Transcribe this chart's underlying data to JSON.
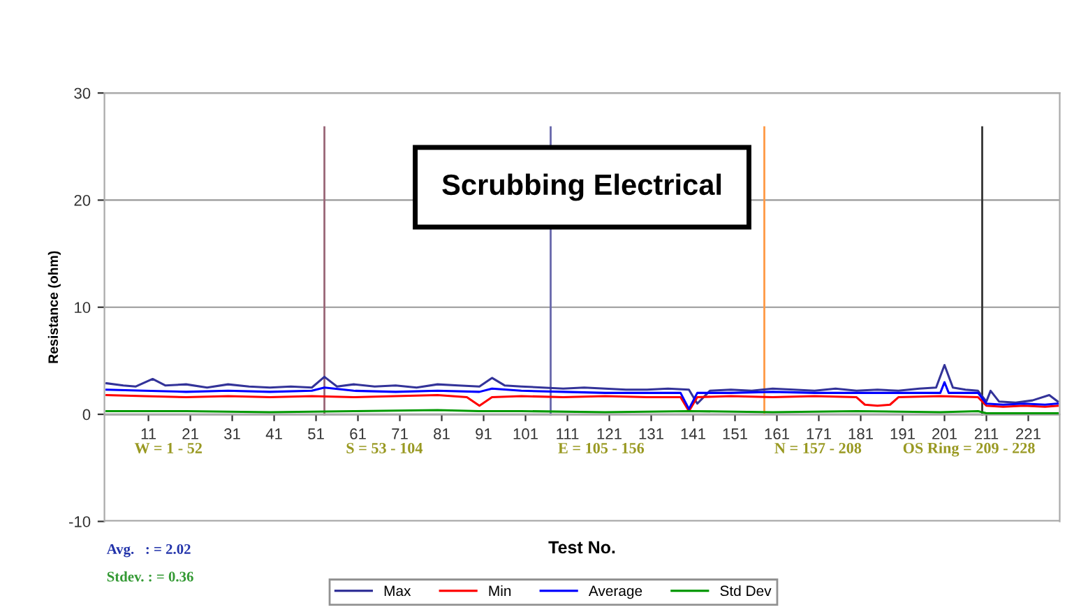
{
  "chart_data": {
    "type": "line",
    "title": "Scrubbing Electrical",
    "xlabel": "Test No.",
    "ylabel": "Resistance (ohm)",
    "xlim": [
      0.5,
      228.5
    ],
    "xticks": [
      11,
      21,
      31,
      41,
      51,
      61,
      71,
      81,
      91,
      101,
      111,
      121,
      131,
      141,
      151,
      161,
      171,
      181,
      191,
      201,
      211,
      221
    ],
    "ylim": [
      -10,
      30
    ],
    "yticks": [
      -10,
      0,
      10,
      20,
      30
    ],
    "grid": "y",
    "legend": "bottom",
    "line_style": "solid",
    "series": [
      {
        "name": "Max",
        "color": "#333399",
        "x": [
          1,
          5,
          8,
          12,
          15,
          20,
          25,
          30,
          35,
          40,
          45,
          50,
          53,
          56,
          60,
          65,
          70,
          75,
          80,
          85,
          90,
          93,
          96,
          100,
          105,
          110,
          115,
          120,
          125,
          130,
          135,
          140,
          142,
          145,
          150,
          155,
          160,
          165,
          170,
          175,
          180,
          185,
          190,
          195,
          199,
          201,
          203,
          206,
          209,
          211,
          212,
          214,
          218,
          222,
          226,
          228
        ],
        "values": [
          2.9,
          2.7,
          2.6,
          3.3,
          2.7,
          2.8,
          2.5,
          2.8,
          2.6,
          2.5,
          2.6,
          2.5,
          3.5,
          2.6,
          2.8,
          2.6,
          2.7,
          2.5,
          2.8,
          2.7,
          2.6,
          3.4,
          2.7,
          2.6,
          2.5,
          2.4,
          2.5,
          2.4,
          2.3,
          2.3,
          2.4,
          2.3,
          1.0,
          2.2,
          2.3,
          2.2,
          2.4,
          2.3,
          2.2,
          2.4,
          2.2,
          2.3,
          2.2,
          2.4,
          2.5,
          4.6,
          2.5,
          2.3,
          2.2,
          1.2,
          2.2,
          1.2,
          1.1,
          1.3,
          1.8,
          1.2
        ]
      },
      {
        "name": "Min",
        "color": "#ff0000",
        "x": [
          1,
          10,
          20,
          30,
          40,
          50,
          60,
          70,
          80,
          87,
          90,
          93,
          100,
          110,
          120,
          130,
          138,
          140,
          142,
          150,
          160,
          170,
          180,
          182,
          185,
          188,
          190,
          200,
          209,
          211,
          215,
          220,
          225,
          228
        ],
        "values": [
          1.8,
          1.7,
          1.6,
          1.7,
          1.6,
          1.7,
          1.6,
          1.7,
          1.8,
          1.6,
          0.8,
          1.6,
          1.7,
          1.6,
          1.7,
          1.6,
          1.6,
          0.3,
          1.6,
          1.7,
          1.6,
          1.7,
          1.6,
          0.9,
          0.8,
          0.9,
          1.6,
          1.7,
          1.6,
          0.8,
          0.7,
          0.8,
          0.7,
          0.8
        ]
      },
      {
        "name": "Average",
        "color": "#0000ff",
        "x": [
          1,
          10,
          20,
          30,
          40,
          50,
          53,
          60,
          70,
          80,
          90,
          93,
          100,
          110,
          120,
          130,
          138,
          140,
          142,
          150,
          160,
          170,
          180,
          190,
          200,
          201,
          202,
          209,
          211,
          215,
          220,
          225,
          228
        ],
        "values": [
          2.3,
          2.2,
          2.1,
          2.2,
          2.1,
          2.2,
          2.5,
          2.2,
          2.1,
          2.2,
          2.1,
          2.4,
          2.2,
          2.1,
          2.0,
          2.0,
          2.0,
          0.5,
          2.0,
          2.0,
          2.1,
          2.0,
          2.0,
          2.0,
          2.0,
          3.0,
          2.0,
          2.0,
          1.0,
          0.9,
          1.0,
          0.9,
          1.0
        ]
      },
      {
        "name": "Std Dev",
        "color": "#009900",
        "x": [
          1,
          20,
          40,
          60,
          80,
          90,
          100,
          120,
          140,
          160,
          180,
          200,
          209,
          211,
          228
        ],
        "values": [
          0.3,
          0.3,
          0.2,
          0.3,
          0.4,
          0.3,
          0.3,
          0.2,
          0.3,
          0.2,
          0.3,
          0.2,
          0.3,
          0.1,
          0.1
        ]
      }
    ],
    "ref_lines": [
      {
        "axis": "x",
        "value": 53,
        "label": null,
        "color": "#996677"
      },
      {
        "axis": "x",
        "value": 107,
        "label": null,
        "color": "#6666aa"
      },
      {
        "axis": "x",
        "value": 158,
        "label": null,
        "color": "#ff9944"
      },
      {
        "axis": "x",
        "value": 210,
        "label": null,
        "color": "#333333"
      }
    ],
    "annotations": [
      "W = 1 - 52",
      "S = 53 - 104",
      "E = 105 - 156",
      "N = 157 - 208",
      "OS Ring = 209 - 228",
      "Avg.   : = 2.02",
      "Stdev. : = 0.36"
    ]
  }
}
